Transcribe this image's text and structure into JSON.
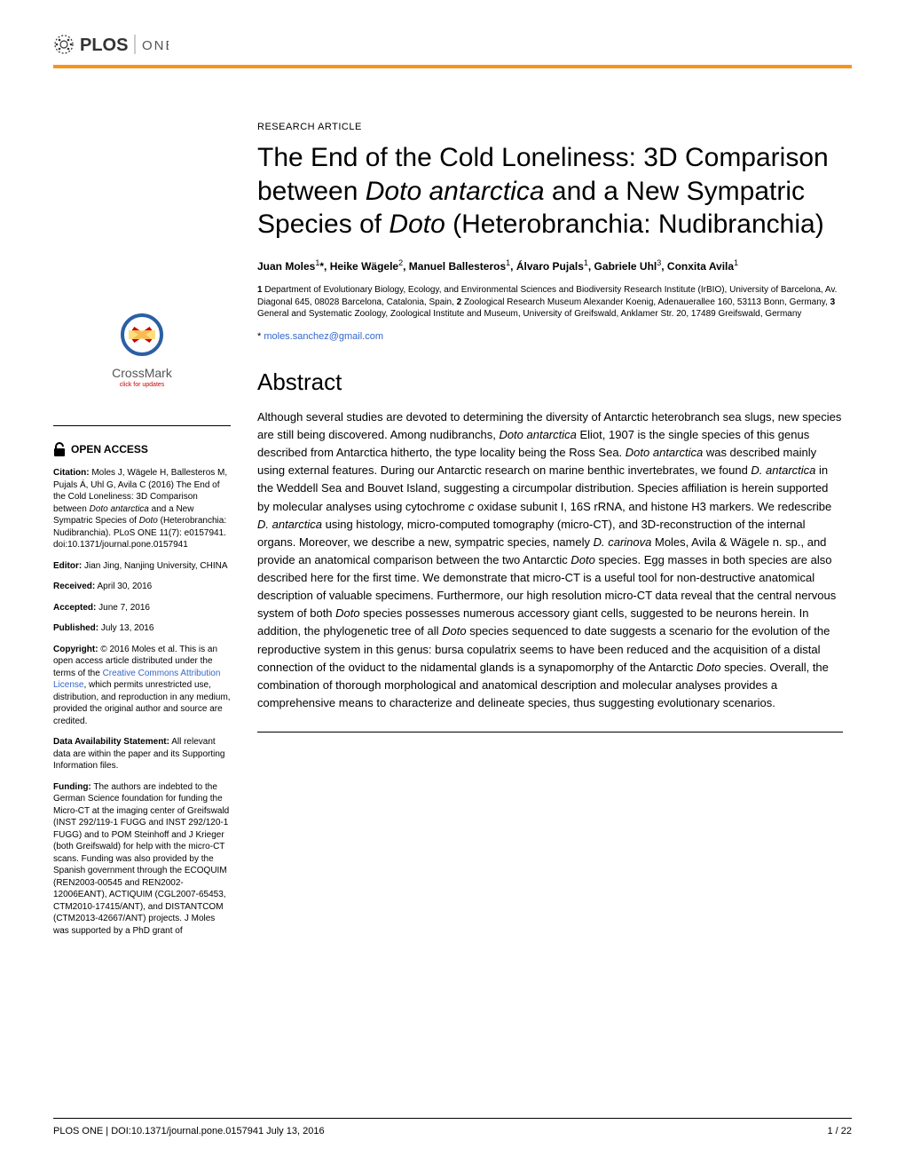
{
  "journal": {
    "logo_text": "PLOS",
    "sub_text": "ONE",
    "accent_color": "#f7941e"
  },
  "crossmark": {
    "label": "CrossMark",
    "sub": "click for updates"
  },
  "open_access": {
    "label": "OPEN ACCESS"
  },
  "sidebar": {
    "citation_label": "Citation:",
    "citation_text": " Moles J, Wägele H, Ballesteros M, Pujals Á, Uhl G, Avila C (2016) The End of the Cold Loneliness: 3D Comparison between ",
    "citation_italic1": "Doto antarctica",
    "citation_text2": " and a New Sympatric Species of ",
    "citation_italic2": "Doto",
    "citation_text3": " (Heterobranchia: Nudibranchia). PLoS ONE 11(7): e0157941. doi:10.1371/journal.pone.0157941",
    "editor_label": "Editor:",
    "editor_text": " Jian Jing, Nanjing University, CHINA",
    "received_label": "Received:",
    "received_text": " April 30, 2016",
    "accepted_label": "Accepted:",
    "accepted_text": " June 7, 2016",
    "published_label": "Published:",
    "published_text": " July 13, 2016",
    "copyright_label": "Copyright:",
    "copyright_text": " © 2016 Moles et al. This is an open access article distributed under the terms of the ",
    "copyright_link": "Creative Commons Attribution License",
    "copyright_text2": ", which permits unrestricted use, distribution, and reproduction in any medium, provided the original author and source are credited.",
    "data_label": "Data Availability Statement:",
    "data_text": " All relevant data are within the paper and its Supporting Information files.",
    "funding_label": "Funding:",
    "funding_text": " The authors are indebted to the German Science foundation for funding the Micro-CT at the imaging center of Greifswald (INST 292/119-1 FUGG and INST 292/120-1 FUGG) and to POM Steinhoff and J Krieger (both Greifswald) for help with the micro-CT scans. Funding was also provided by the Spanish government through the ECOQUIM (REN2003-00545 and REN2002-12006EANT), ACTIQUIM (CGL2007-65453, CTM2010-17415/ANT), and DISTANTCOM (CTM2013-42667/ANT) projects. J Moles was supported by a PhD grant of"
  },
  "article": {
    "type": "RESEARCH ARTICLE",
    "title_part1": "The End of the Cold Loneliness: 3D Comparison between ",
    "title_italic1": "Doto antarctica",
    "title_part2": " and a New Sympatric Species of ",
    "title_italic2": "Doto",
    "title_part3": " (Heterobranchia: Nudibranchia)",
    "authors_html": "Juan Moles<sup>1</sup>*, Heike Wägele<sup>2</sup>, Manuel Ballesteros<sup>1</sup>, Álvaro Pujals<sup>1</sup>, Gabriele Uhl<sup>3</sup>, Conxita Avila<sup>1</sup>",
    "affiliations": "1 Department of Evolutionary Biology, Ecology, and Environmental Sciences and Biodiversity Research Institute (IrBIO), University of Barcelona, Av. Diagonal 645, 08028 Barcelona, Catalonia, Spain, 2 Zoological Research Museum Alexander Koenig, Adenauerallee 160, 53113 Bonn, Germany, 3 General and Systematic Zoology, Zoological Institute and Museum, University of Greifswald, Anklamer Str. 20, 17489 Greifswald, Germany",
    "email_prefix": "* ",
    "email": "moles.sanchez@gmail.com"
  },
  "abstract": {
    "heading": "Abstract",
    "body_part1": "Although several studies are devoted to determining the diversity of Antarctic heterobranch sea slugs, new species are still being discovered. Among nudibranchs, ",
    "body_italic1": "Doto antarctica",
    "body_part2": " Eliot, 1907 is the single species of this genus described from Antarctica hitherto, the type locality being the Ross Sea. ",
    "body_italic2": "Doto antarctica",
    "body_part3": " was described mainly using external features. During our Antarctic research on marine benthic invertebrates, we found ",
    "body_italic3": "D. antarctica",
    "body_part4": " in the Weddell Sea and Bouvet Island, suggesting a circumpolar distribution. Species affiliation is herein supported by molecular analyses using cytochrome ",
    "body_italic4": "c",
    "body_part5": " oxidase subunit I, 16S rRNA, and histone H3 markers. We redescribe ",
    "body_italic5": "D. antarctica",
    "body_part6": " using histology, micro-computed tomography (micro-CT), and 3D-reconstruction of the internal organs. Moreover, we describe a new, sympatric species, namely ",
    "body_italic6": "D. carinova",
    "body_part7": " Moles, Avila & Wägele n. sp., and provide an anatomical comparison between the two Antarctic ",
    "body_italic7": "Doto",
    "body_part8": " species. Egg masses in both species are also described here for the first time. We demonstrate that micro-CT is a useful tool for non-destructive anatomical description of valuable specimens. Furthermore, our high resolution micro-CT data reveal that the central nervous system of both ",
    "body_italic8": "Doto",
    "body_part9": " species possesses numerous accessory giant cells, suggested to be neurons herein. In addition, the phylogenetic tree of all ",
    "body_italic9": "Doto",
    "body_part10": " species sequenced to date suggests a scenario for the evolution of the reproductive system in this genus: bursa copulatrix seems to have been reduced and the acquisition of a distal connection of the oviduct to the nidamental glands is a synapomorphy of the Antarctic ",
    "body_italic10": "Doto",
    "body_part11": " species. Overall, the combination of thorough morphological and anatomical description and molecular analyses provides a comprehensive means to characterize and delineate species, thus suggesting evolutionary scenarios."
  },
  "footer": {
    "left": "PLOS ONE | DOI:10.1371/journal.pone.0157941    July 13, 2016",
    "right": "1 / 22"
  }
}
